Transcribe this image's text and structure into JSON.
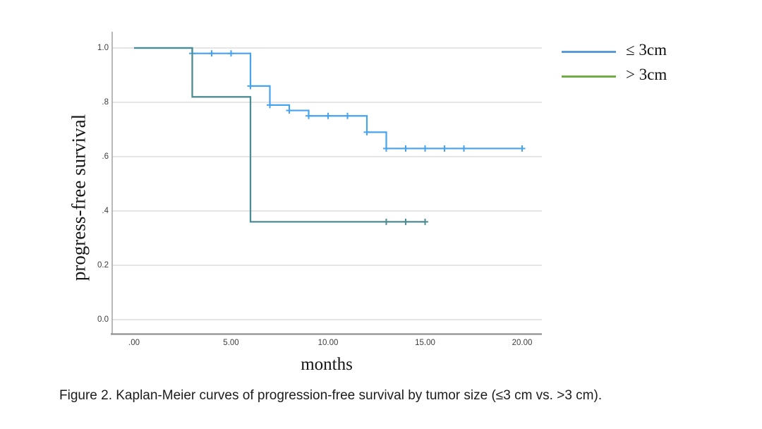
{
  "figure": {
    "caption": "Figure 2. Kaplan-Meier curves of progression-free survival by tumor size (≤3 cm vs. >3 cm)."
  },
  "chart_data": {
    "type": "line",
    "subtype": "kaplan-meier-step-curves",
    "title": "",
    "xlabel": "months",
    "ylabel": "progress-free survival",
    "xlim": [
      -1.1,
      21
    ],
    "ylim": [
      -0.05,
      1.06
    ],
    "grid": "horizontal-only",
    "legend_position": "outside-top-right",
    "x_ticks": [
      {
        "label": ".00",
        "value": 0
      },
      {
        "label": "5.00",
        "value": 5
      },
      {
        "label": "10.00",
        "value": 10
      },
      {
        "label": "15.00",
        "value": 15
      },
      {
        "label": "20.00",
        "value": 20
      }
    ],
    "y_ticks": [
      {
        "label": "1.0",
        "value": 1.0
      },
      {
        "label": ".8",
        "value": 0.8
      },
      {
        "label": ".6",
        "value": 0.6
      },
      {
        "label": ".4",
        "value": 0.4
      },
      {
        "label": "0.2",
        "value": 0.2
      },
      {
        "label": "0.0",
        "value": 0.0
      }
    ],
    "colors": {
      "gridline": "#cbcbcb",
      "axis": "#909090",
      "tick_text": "#3d3d3d"
    },
    "series": [
      {
        "name": "≤ 3cm",
        "line_color": "#47a3f0",
        "legend_color": "#5b9bd5",
        "steps": [
          [
            0,
            1.0
          ],
          [
            3,
            0.98
          ],
          [
            6,
            0.86
          ],
          [
            7,
            0.79
          ],
          [
            8,
            0.77
          ],
          [
            9,
            0.75
          ],
          [
            12,
            0.69
          ],
          [
            13,
            0.63
          ]
        ],
        "end_time": 20,
        "censor_marks": [
          [
            3,
            0.98
          ],
          [
            4,
            0.98
          ],
          [
            5,
            0.98
          ],
          [
            6,
            0.86
          ],
          [
            7,
            0.79
          ],
          [
            8,
            0.77
          ],
          [
            9,
            0.75
          ],
          [
            10,
            0.75
          ],
          [
            11,
            0.75
          ],
          [
            12,
            0.69
          ],
          [
            13,
            0.63
          ],
          [
            14,
            0.63
          ],
          [
            15,
            0.63
          ],
          [
            16,
            0.63
          ],
          [
            17,
            0.63
          ],
          [
            20,
            0.63
          ]
        ]
      },
      {
        "name": "> 3cm",
        "line_color": "#4d8c93",
        "legend_color": "#70ad47",
        "steps": [
          [
            0,
            1.0
          ],
          [
            3,
            0.82
          ],
          [
            6,
            0.36
          ]
        ],
        "end_time": 15,
        "censor_marks": [
          [
            13,
            0.36
          ],
          [
            14,
            0.36
          ],
          [
            15,
            0.36
          ]
        ]
      }
    ]
  }
}
